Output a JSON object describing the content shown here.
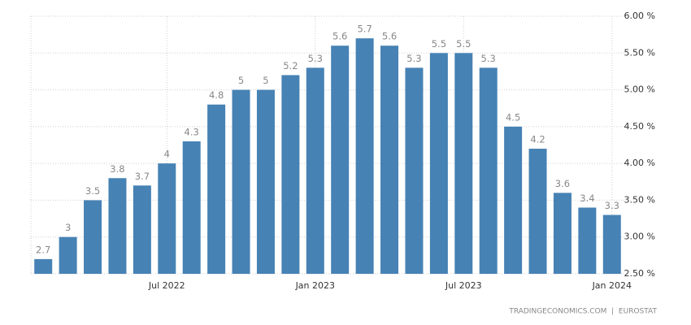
{
  "chart_data": {
    "type": "bar",
    "categories": [
      null,
      null,
      null,
      null,
      null,
      "Jul 2022",
      null,
      null,
      null,
      null,
      null,
      "Jan 2023",
      null,
      null,
      null,
      null,
      null,
      "Jul 2023",
      null,
      null,
      null,
      null,
      null,
      "Jan 2024"
    ],
    "values": [
      2.7,
      3,
      3.5,
      3.8,
      3.7,
      4,
      4.3,
      4.8,
      5,
      5,
      5.2,
      5.3,
      5.6,
      5.7,
      5.6,
      5.3,
      5.5,
      5.5,
      5.3,
      4.5,
      4.2,
      3.6,
      3.4,
      3.3
    ],
    "color": "#4682b4",
    "ylim": [
      2.5,
      6.0
    ],
    "yticks": [
      {
        "value": 2.5,
        "label": "2.50 %"
      },
      {
        "value": 3.0,
        "label": "3.00 %"
      },
      {
        "value": 3.5,
        "label": "3.50 %"
      },
      {
        "value": 4.0,
        "label": "4.00 %"
      },
      {
        "value": 4.5,
        "label": "4.50 %"
      },
      {
        "value": 5.0,
        "label": "5.00 %"
      },
      {
        "value": 5.5,
        "label": "5.50 %"
      },
      {
        "value": 6.0,
        "label": "6.00 %"
      }
    ],
    "grid": true,
    "source": "TRADINGECONOMICS.COM  |  EUROSTAT"
  }
}
